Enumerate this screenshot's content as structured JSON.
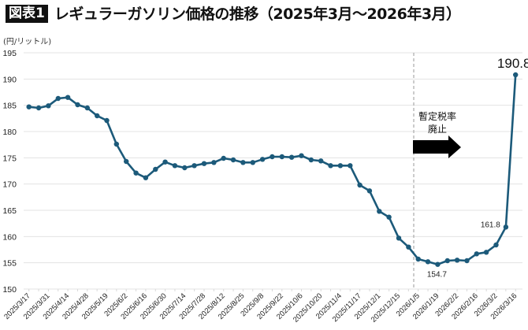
{
  "header": {
    "badge": "図表1",
    "title": "レギュラーガソリン価格の推移（2025年3月～2026年3月）",
    "unit_label": "(円/リットル)"
  },
  "annotation": {
    "line1": "暫定税率",
    "line2": "廃止",
    "event_index": 40
  },
  "colors": {
    "line": "#1c5a7a",
    "grid": "#e3e3e3",
    "dashed": "#aaaaaa",
    "arrow": "#000000"
  },
  "chart_data": {
    "type": "line",
    "title": "レギュラーガソリン価格の推移（2025年3月～2026年3月）",
    "xlabel": "",
    "ylabel": "(円/リットル)",
    "ylim": [
      150,
      195
    ],
    "yticks": [
      150,
      155,
      160,
      165,
      170,
      175,
      180,
      185,
      190,
      195
    ],
    "grid": true,
    "legend": null,
    "x": [
      "2025/3/17",
      "2025/3/24",
      "2025/3/31",
      "2025/4/7",
      "2025/4/14",
      "2025/4/21",
      "2025/4/28",
      "2025/5/12",
      "2025/5/19",
      "2025/5/26",
      "2025/6/2",
      "2025/6/9",
      "2025/6/16",
      "2025/6/23",
      "2025/6/30",
      "2025/7/7",
      "2025/7/14",
      "2025/7/22",
      "2025/7/28",
      "2025/8/4",
      "2025/8/12",
      "2025/8/18",
      "2025/8/25",
      "2025/9/1",
      "2025/9/8",
      "2025/9/16",
      "2025/9/22",
      "2025/9/29",
      "2025/10/6",
      "2025/10/14",
      "2025/10/20",
      "2025/10/27",
      "2025/11/4",
      "2025/11/10",
      "2025/11/17",
      "2025/11/25",
      "2025/12/1",
      "2025/12/8",
      "2025/12/15",
      "2025/12/22",
      "2026/1/5",
      "2026/1/13",
      "2026/1/19",
      "2026/1/26",
      "2026/2/2",
      "2026/2/9",
      "2026/2/16",
      "2026/2/24",
      "2026/3/2",
      "2026/3/9",
      "2026/3/16"
    ],
    "tick_labels": [
      "2025/3/17",
      "2025/3/31",
      "2025/4/14",
      "2025/4/28",
      "2025/5/19",
      "2025/6/2",
      "2025/6/16",
      "2025/6/30",
      "2025/7/14",
      "2025/7/28",
      "2025/8/12",
      "2025/8/25",
      "2025/9/8",
      "2025/9/22",
      "2025/10/6",
      "2025/10/20",
      "2025/11/4",
      "2025/11/17",
      "2025/12/1",
      "2025/12/15",
      "2026/1/5",
      "2026/1/19",
      "2026/2/2",
      "2026/2/16",
      "2026/3/2",
      "2026/3/16"
    ],
    "series": [
      {
        "name": "レギュラーガソリン",
        "values": [
          184.7,
          184.5,
          184.9,
          186.3,
          186.5,
          185.1,
          184.5,
          183.0,
          182.1,
          177.6,
          174.3,
          172.1,
          171.2,
          172.8,
          174.2,
          173.5,
          173.1,
          173.5,
          173.9,
          174.1,
          174.9,
          174.6,
          174.1,
          174.1,
          174.7,
          175.2,
          175.2,
          175.1,
          175.4,
          174.6,
          174.4,
          173.5,
          173.5,
          173.5,
          169.8,
          168.7,
          164.8,
          163.7,
          159.7,
          158.0,
          155.7,
          155.2,
          154.7,
          155.4,
          155.5,
          155.4,
          156.7,
          157.0,
          158.4,
          161.8,
          190.8
        ]
      }
    ],
    "data_labels": [
      {
        "index": 42,
        "text": "154.7",
        "size": "small"
      },
      {
        "index": 49,
        "text": "161.8",
        "size": "small"
      },
      {
        "index": 50,
        "text": "190.8",
        "size": "large"
      }
    ],
    "annotations": [
      {
        "type": "vline-dashed",
        "at_index": 39.6,
        "text": "暫定税率廃止",
        "arrow": "right"
      }
    ]
  }
}
